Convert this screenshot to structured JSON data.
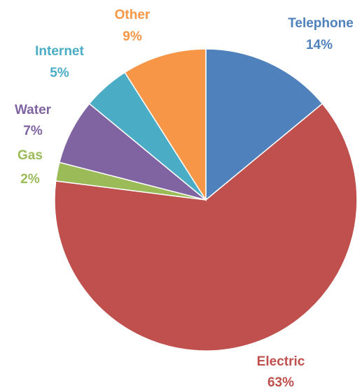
{
  "chart_data": {
    "type": "pie",
    "title": "",
    "legend": "none",
    "slices": [
      {
        "label": "Telephone",
        "value": 14,
        "value_label": "14%",
        "color": "#4f81bd"
      },
      {
        "label": "Electric",
        "value": 63,
        "value_label": "63%",
        "color": "#c0504d"
      },
      {
        "label": "Gas",
        "value": 2,
        "value_label": "2%",
        "color": "#9bbb59"
      },
      {
        "label": "Water",
        "value": 7,
        "value_label": "7%",
        "color": "#8064a2"
      },
      {
        "label": "Internet",
        "value": 5,
        "value_label": "5%",
        "color": "#4bacc6"
      },
      {
        "label": "Other",
        "value": 9,
        "value_label": "9%",
        "color": "#f79646"
      }
    ]
  }
}
